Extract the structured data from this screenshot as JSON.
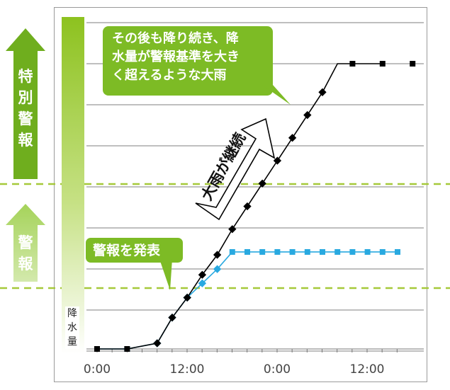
{
  "warnings": {
    "special_label": "特別警報",
    "regular_label": "警報"
  },
  "callouts": {
    "heavy_rain_continues": "その後も降り続き、降|水量が警報基準を大き|く超えるような大雨",
    "warning_issued": "警報を発表"
  },
  "band_label": "大雨が継続",
  "colors": {
    "accent_green": "#8dc21f",
    "callout_green": "#7dbb25",
    "threshold_dash": "#a6c93a",
    "series_heavy": "#000000",
    "series_normal": "#29a9e0"
  },
  "chart_data": {
    "type": "line",
    "ylabel": "降水量",
    "x_tick_labels": [
      "0:00",
      "12:00",
      "0:00",
      "12:00"
    ],
    "x_tick_hours": [
      0,
      12,
      24,
      36
    ],
    "xlim": [
      -2,
      40
    ],
    "ylim": [
      0,
      10
    ],
    "grid": true,
    "y_gridlines": [
      1,
      2,
      3,
      4,
      5,
      6,
      7,
      8,
      9,
      10
    ],
    "thresholds": {
      "warning": 2.3,
      "special_warning": 6.3
    },
    "series": [
      {
        "color": "#000000",
        "marker": "square",
        "x": [
          0,
          4,
          8,
          10,
          12,
          14,
          16,
          18,
          20,
          22,
          24,
          26,
          28,
          30,
          32,
          34,
          38
        ],
        "y": [
          0.0,
          0.0,
          0.2,
          1.1,
          1.8,
          2.6,
          3.3,
          4.2,
          5.0,
          5.8,
          6.6,
          7.4,
          8.2,
          9.0,
          10.0,
          10.0,
          10.0
        ],
        "marker_x": [
          0,
          4,
          8,
          10,
          12,
          14,
          16,
          18,
          20,
          22,
          24,
          26,
          28,
          30,
          34,
          38,
          42
        ]
      },
      {
        "color": "#29a9e0",
        "marker": "square",
        "x": [
          0,
          4,
          8,
          10,
          12,
          14,
          16,
          18,
          20,
          22,
          24,
          26,
          28,
          30,
          32,
          34,
          36,
          38,
          40
        ],
        "y": [
          0.0,
          0.0,
          0.2,
          1.1,
          1.8,
          2.3,
          2.8,
          3.4,
          3.4,
          3.4,
          3.4,
          3.4,
          3.4,
          3.4,
          3.4,
          3.4,
          3.4,
          3.4,
          3.4
        ]
      }
    ]
  }
}
